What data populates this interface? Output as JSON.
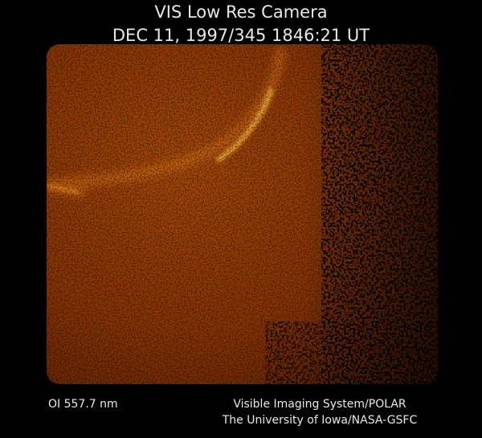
{
  "header": {
    "title": "VIS Low Res Camera",
    "timestamp": "DEC 11, 1997/345 1846:21 UT"
  },
  "footer": {
    "filter": "OI 557.7 nm",
    "credit_lines": [
      "Visible Imaging System/POLAR",
      "The University of Iowa/NASA-GSFC"
    ]
  }
}
